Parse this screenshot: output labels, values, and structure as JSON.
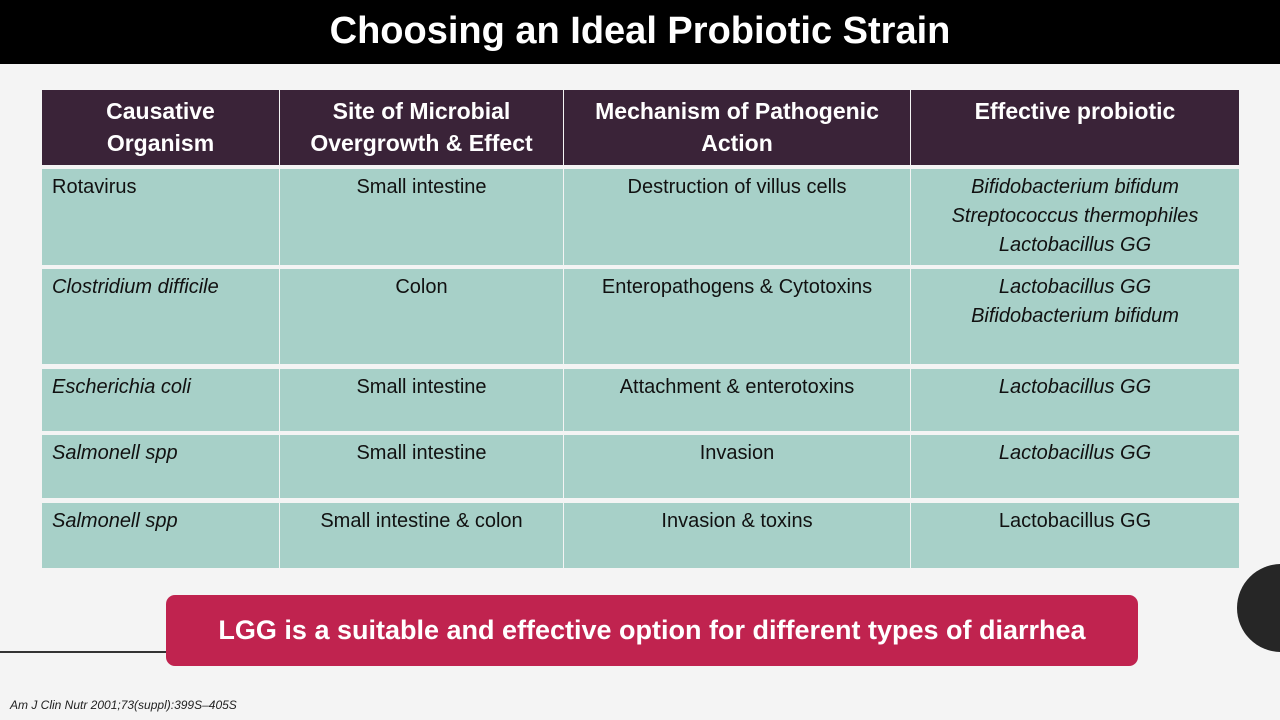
{
  "header": {
    "title": "Choosing an Ideal Probiotic Strain"
  },
  "table": {
    "headers": [
      "Causative Organism",
      "Site of Microbial Overgrowth & Effect",
      "Mechanism of Pathogenic Action",
      "Effective probiotic"
    ],
    "rows": [
      [
        "Rotavirus",
        "Small intestine",
        "Destruction of villus cells",
        [
          "Bifidobacterium bifidum",
          "Streptococcus  thermophiles",
          "Lactobacillus GG"
        ]
      ],
      [
        "Clostridium difficile",
        "Colon",
        "Enteropathogens & Cytotoxins",
        [
          "Lactobacillus GG",
          "Bifidobacterium bifidum"
        ]
      ],
      [
        "Escherichia coli",
        "Small intestine",
        "Attachment & enterotoxins",
        [
          "Lactobacillus GG"
        ]
      ],
      [
        "Salmonell spp",
        "Small intestine",
        "Invasion",
        [
          "Lactobacillus GG"
        ]
      ],
      [
        "Salmonell spp",
        "Small intestine & colon",
        "Invasion & toxins",
        [
          "Lactobacillus GG"
        ]
      ]
    ]
  },
  "callout": "LGG is a suitable and effective option for different types of diarrhea",
  "citation": "Am J Clin Nutr 2001;73(suppl):399S–405S"
}
